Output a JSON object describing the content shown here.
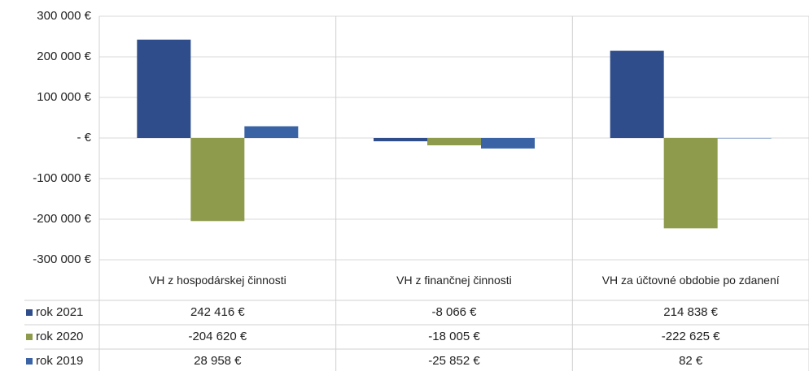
{
  "chart_data": {
    "type": "bar",
    "categories": [
      "VH z hospodárskej činnosti",
      "VH z finančnej činnosti",
      "VH za účtovné obdobie po zdanení"
    ],
    "series": [
      {
        "name": "rok 2021",
        "color": "#2e4d8a",
        "values": [
          242416,
          -8066,
          214838
        ],
        "value_labels": [
          "242 416 €",
          "-8 066 €",
          "214 838 €"
        ]
      },
      {
        "name": "rok 2020",
        "color": "#8e9a4c",
        "values": [
          -204620,
          -18005,
          -222625
        ],
        "value_labels": [
          "-204 620 €",
          "-18 005 €",
          "-222 625 €"
        ]
      },
      {
        "name": "rok 2019",
        "color": "#3a63a6",
        "values": [
          28958,
          -25852,
          82
        ],
        "value_labels": [
          "28 958 €",
          "-25 852 €",
          "82 €"
        ]
      }
    ],
    "ylim": [
      -300000,
      300000
    ],
    "yticks": [
      {
        "value": 300000,
        "label": "300 000 €"
      },
      {
        "value": 200000,
        "label": "200 000 €"
      },
      {
        "value": 100000,
        "label": "100 000 €"
      },
      {
        "value": 0,
        "label": "- €"
      },
      {
        "value": -100000,
        "label": "-100 000 €"
      },
      {
        "value": -200000,
        "label": "-200 000 €"
      },
      {
        "value": -300000,
        "label": "-300 000 €"
      }
    ],
    "grid": true
  }
}
